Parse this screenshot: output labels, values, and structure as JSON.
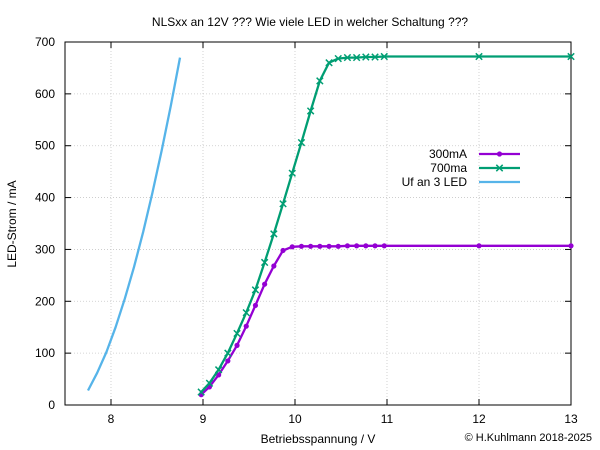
{
  "chart_data": {
    "type": "line",
    "title": "NLSxx an 12V ??? Wie viele LED in welcher Schaltung ???",
    "xlabel": "Betriebsspannung / V",
    "ylabel": "LED-Strom / mA",
    "xlim": [
      7.5,
      13
    ],
    "ylim": [
      0,
      700
    ],
    "xticks": [
      "8",
      "9",
      "10",
      "11",
      "12",
      "13"
    ],
    "yticks": [
      "0",
      "100",
      "200",
      "300",
      "400",
      "500",
      "600",
      "700"
    ],
    "grid": true,
    "legend": "right",
    "credit": "© H.Kuhlmann 2018-2025",
    "credit_color": "#e07070",
    "series": [
      {
        "name": "300mA",
        "color": "#9400d3",
        "marker": "dot",
        "x": [
          8.98,
          9.07,
          9.17,
          9.27,
          9.37,
          9.47,
          9.57,
          9.67,
          9.77,
          9.87,
          9.97,
          10.07,
          10.17,
          10.27,
          10.37,
          10.47,
          10.57,
          10.67,
          10.77,
          10.87,
          10.97,
          12.0,
          13.0
        ],
        "y": [
          20,
          35,
          58,
          85,
          115,
          152,
          192,
          233,
          268,
          298,
          305,
          306,
          306,
          306,
          306,
          306,
          307,
          307,
          307,
          307,
          307,
          307,
          307
        ]
      },
      {
        "name": "700ma",
        "color": "#009e73",
        "marker": "x",
        "x": [
          8.98,
          9.07,
          9.17,
          9.27,
          9.37,
          9.47,
          9.57,
          9.67,
          9.77,
          9.87,
          9.97,
          10.07,
          10.17,
          10.27,
          10.37,
          10.47,
          10.57,
          10.67,
          10.77,
          10.87,
          10.97,
          12.0,
          13.0
        ],
        "y": [
          25,
          42,
          68,
          100,
          138,
          178,
          222,
          275,
          330,
          388,
          447,
          506,
          567,
          625,
          660,
          668,
          670,
          670,
          671,
          671,
          672,
          672,
          672
        ]
      },
      {
        "name": "Uf an 3 LED",
        "color": "#56b4e9",
        "marker": "none",
        "x": [
          7.75,
          7.85,
          7.95,
          8.05,
          8.15,
          8.25,
          8.35,
          8.45,
          8.55,
          8.65,
          8.75
        ],
        "y": [
          28,
          62,
          102,
          150,
          205,
          266,
          334,
          409,
          490,
          577,
          670
        ]
      }
    ]
  }
}
